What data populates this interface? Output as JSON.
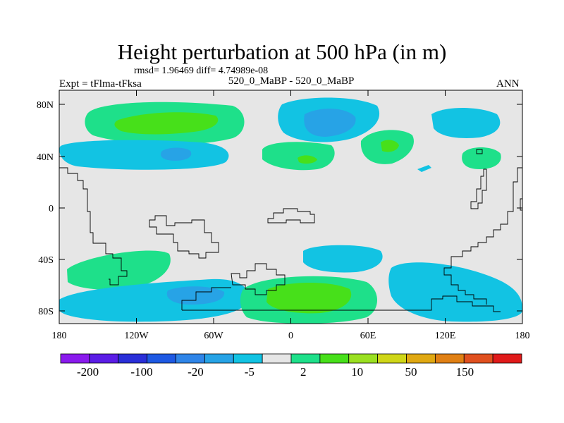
{
  "header": {
    "title": "Height perturbation at 500 hPa (in m)",
    "stats": "rmsd= 1.96469 diff= 4.74989e-08",
    "expt": "Expt = tFlma-tFksa",
    "case": "520_0_MaBP - 520_0_MaBP",
    "season": "ANN"
  },
  "map": {
    "lat_labels": [
      "80N",
      "40N",
      "0",
      "40S",
      "80S"
    ],
    "lon_labels": [
      "180",
      "120W",
      "60W",
      "0",
      "60E",
      "120E",
      "180"
    ],
    "background_color": "#e6e6e6"
  },
  "colorbar": {
    "colors": [
      "#8a1aed",
      "#5b1de6",
      "#2a2fd8",
      "#1e59e3",
      "#2f85e8",
      "#27a3e6",
      "#12c3e3",
      "#e6e6e6",
      "#1ee08a",
      "#47e01a",
      "#9ae021",
      "#cfd618",
      "#e0a812",
      "#e08014",
      "#e0501f",
      "#e01a1a"
    ],
    "labels": [
      "-200",
      "-100",
      "-20",
      "-5",
      "2",
      "10",
      "50",
      "150"
    ]
  }
}
